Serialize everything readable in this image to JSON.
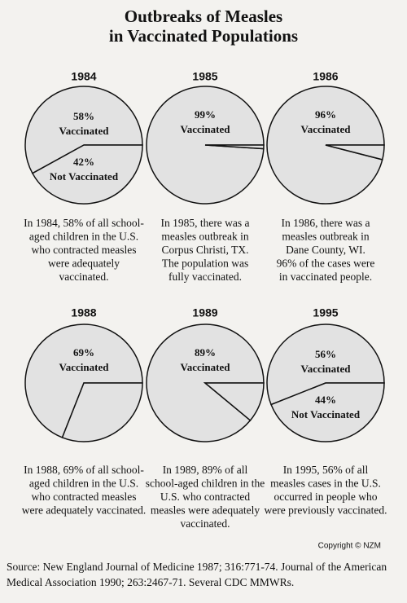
{
  "title": [
    "Outbreaks of Measles",
    "in Vaccinated Populations"
  ],
  "copyright": "Copyright © NZM",
  "source": [
    "Source: New England Journal of Medicine 1987; 316:771-74. Journal of the American",
    "Medical Association 1990; 263:2467-71. Several CDC MMWRs."
  ],
  "chart_data": [
    {
      "type": "pie",
      "title": "1984",
      "categories": [
        "Vaccinated",
        "Not Vaccinated"
      ],
      "values": [
        58,
        42
      ],
      "value_labels": [
        "58%",
        "42%"
      ],
      "color": "#e2e2e2",
      "caption": [
        "In 1984, 58% of all school-",
        "aged children in the U.S.",
        "who contracted measles",
        "were adequately",
        "vaccinated."
      ]
    },
    {
      "type": "pie",
      "title": "1985",
      "categories": [
        "Vaccinated",
        null
      ],
      "values": [
        99,
        1
      ],
      "value_labels": [
        "99%",
        null
      ],
      "color": "#e2e2e2",
      "caption": [
        "In 1985, there was a",
        "measles outbreak in",
        "Corpus Christi, TX.",
        "The population was",
        "fully vaccinated."
      ]
    },
    {
      "type": "pie",
      "title": "1986",
      "categories": [
        "Vaccinated",
        null
      ],
      "values": [
        96,
        4
      ],
      "value_labels": [
        "96%",
        null
      ],
      "color": "#e2e2e2",
      "caption": [
        "In 1986, there was a",
        "measles outbreak in",
        "Dane County, WI.",
        "96% of the cases were",
        "in vaccinated people."
      ]
    },
    {
      "type": "pie",
      "title": "1988",
      "categories": [
        "Vaccinated",
        null
      ],
      "values": [
        69,
        31
      ],
      "value_labels": [
        "69%",
        null
      ],
      "color": "#e2e2e2",
      "caption": [
        "In 1988, 69% of all school-",
        "aged children in the U.S.",
        "who contracted measles",
        "were adequately vaccinated."
      ]
    },
    {
      "type": "pie",
      "title": "1989",
      "categories": [
        "Vaccinated",
        null
      ],
      "values": [
        89,
        11
      ],
      "value_labels": [
        "89%",
        null
      ],
      "color": "#e2e2e2",
      "caption": [
        "In 1989, 89% of all",
        "school-aged children in the",
        "U.S. who contracted",
        "measles were adequately",
        "vaccinated."
      ]
    },
    {
      "type": "pie",
      "title": "1995",
      "categories": [
        "Vaccinated",
        "Not Vaccinated"
      ],
      "values": [
        56,
        44
      ],
      "value_labels": [
        "56%",
        "44%"
      ],
      "color": "#e2e2e2",
      "caption": [
        "In 1995, 56% of all",
        "measles cases in the U.S.",
        "occurred in people who",
        "were previously vaccinated."
      ]
    }
  ]
}
